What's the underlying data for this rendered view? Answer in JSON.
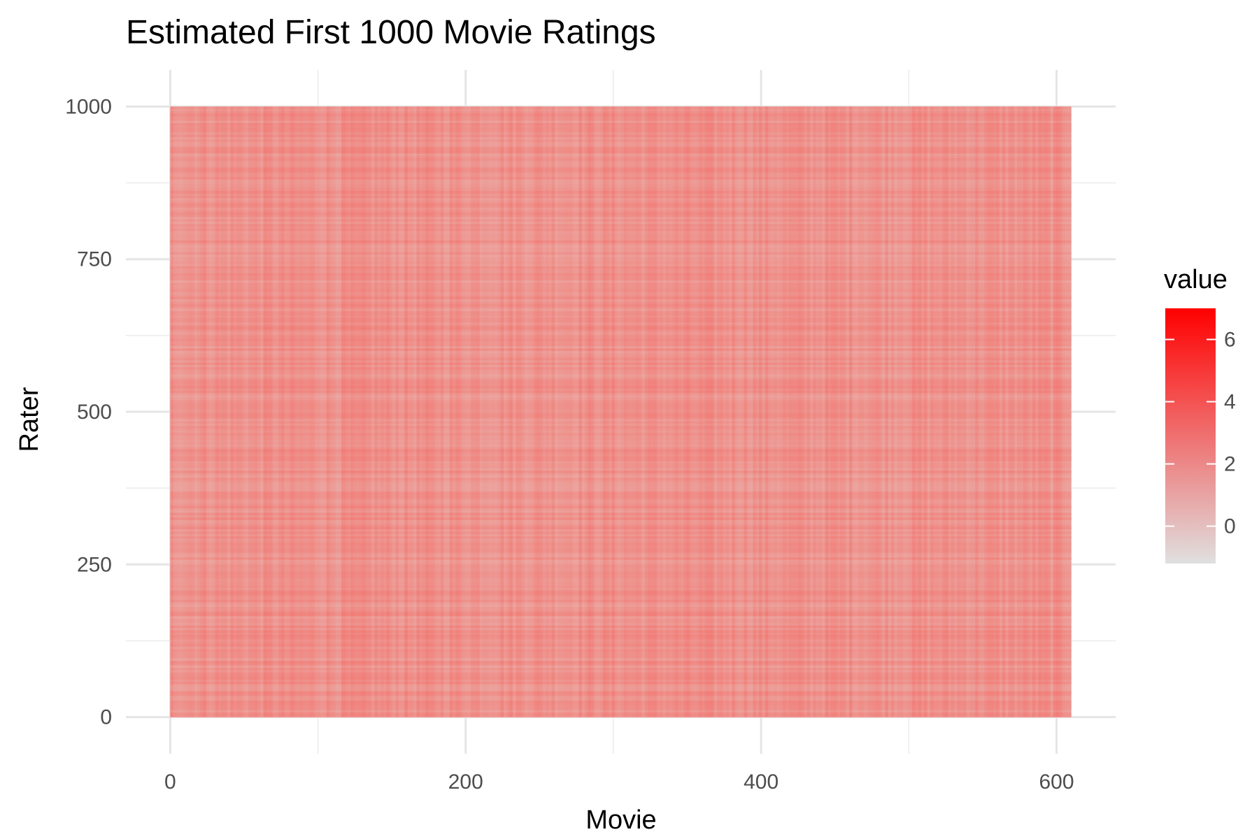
{
  "chart_data": {
    "type": "heatmap",
    "title": "Estimated First 1000 Movie Ratings",
    "xlabel": "Movie",
    "ylabel": "Rater",
    "xlim": [
      -30,
      640
    ],
    "ylim": [
      -60,
      1060
    ],
    "x_data_range": [
      0,
      610
    ],
    "y_data_range": [
      0,
      1000
    ],
    "x_ticks": [
      0,
      200,
      400,
      600
    ],
    "x_tick_labels": [
      "0",
      "200",
      "400",
      "600"
    ],
    "y_ticks": [
      0,
      250,
      500,
      750,
      1000
    ],
    "y_tick_labels": [
      "0",
      "250",
      "500",
      "750",
      "1000"
    ],
    "grid": true,
    "legend": {
      "title": "value",
      "placement": "right",
      "range": [
        -1.2,
        7
      ],
      "ticks": [
        0,
        2,
        4,
        6
      ],
      "tick_labels": [
        "0",
        "2",
        "4",
        "6"
      ],
      "low_color": "#e0e0e0",
      "high_color": "#ff0000"
    },
    "background_value": 1.8,
    "dominant_color": "#f7a08c"
  }
}
